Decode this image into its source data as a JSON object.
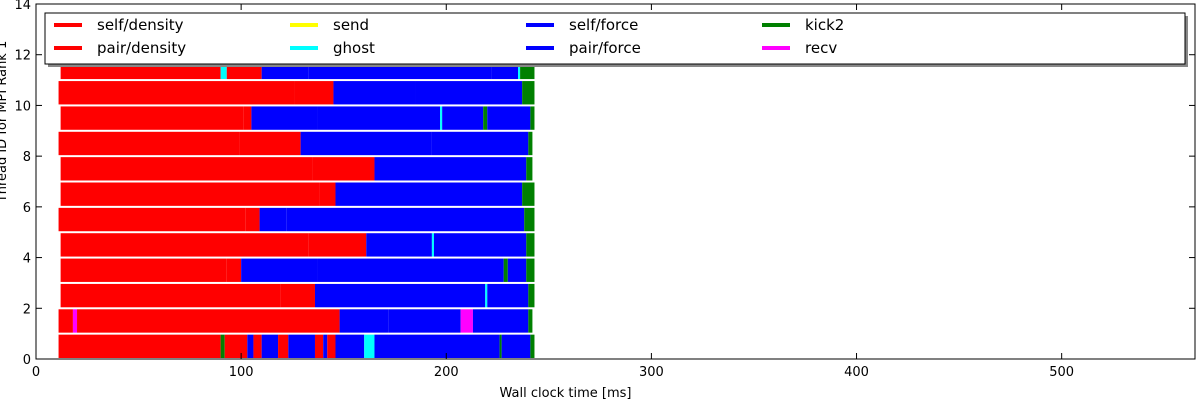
{
  "chart_data": {
    "type": "bar",
    "orientation": "horizontal-timeline",
    "xlabel": "Wall clock time [ms]",
    "ylabel": "Thread ID for MPI Rank 1",
    "xlim": [
      0,
      565
    ],
    "ylim": [
      0,
      14
    ],
    "xticks": [
      0,
      100,
      200,
      300,
      400,
      500
    ],
    "xtick_labels": [
      "0",
      "100",
      "200",
      "300",
      "400",
      "500"
    ],
    "yticks": [
      0,
      2,
      4,
      6,
      8,
      10,
      12,
      14
    ],
    "ytick_labels": [
      "0",
      "2",
      "4",
      "6",
      "8",
      "10",
      "12",
      "14"
    ],
    "grid": false,
    "legend": {
      "placement": "top, inside axes, 5 columns",
      "entries": [
        {
          "label": "self/density",
          "color": "#ff0000"
        },
        {
          "label": "pair/density",
          "color": "#ff0000"
        },
        {
          "label": "send",
          "color": "#ffff00"
        },
        {
          "label": "ghost",
          "color": "#00ffff"
        },
        {
          "label": "self/force",
          "color": "#0000ff"
        },
        {
          "label": "pair/force",
          "color": "#0000ff"
        },
        {
          "label": "kick2",
          "color": "#008000"
        },
        {
          "label": "recv",
          "color": "#ff00ff"
        }
      ]
    },
    "threads": [
      {
        "id": 0,
        "segments": [
          {
            "start": 11,
            "end": 90,
            "task": "self/density"
          },
          {
            "start": 90,
            "end": 92,
            "task": "kick2"
          },
          {
            "start": 92,
            "end": 103,
            "task": "pair/density"
          },
          {
            "start": 103,
            "end": 106,
            "task": "pair/force"
          },
          {
            "start": 106,
            "end": 110,
            "task": "pair/density"
          },
          {
            "start": 110,
            "end": 118,
            "task": "pair/force"
          },
          {
            "start": 118,
            "end": 123,
            "task": "pair/density"
          },
          {
            "start": 123,
            "end": 136,
            "task": "pair/force"
          },
          {
            "start": 136,
            "end": 140,
            "task": "pair/density"
          },
          {
            "start": 140,
            "end": 142,
            "task": "pair/force"
          },
          {
            "start": 142,
            "end": 146,
            "task": "pair/density"
          },
          {
            "start": 146,
            "end": 160,
            "task": "pair/force"
          },
          {
            "start": 160,
            "end": 165,
            "task": "ghost"
          },
          {
            "start": 165,
            "end": 226,
            "task": "pair/force"
          },
          {
            "start": 226,
            "end": 227,
            "task": "kick2"
          },
          {
            "start": 227,
            "end": 241,
            "task": "pair/force"
          },
          {
            "start": 241,
            "end": 243,
            "task": "kick2"
          }
        ]
      },
      {
        "id": 1,
        "segments": [
          {
            "start": 11,
            "end": 18,
            "task": "self/density"
          },
          {
            "start": 18,
            "end": 20,
            "task": "recv"
          },
          {
            "start": 20,
            "end": 148,
            "task": "pair/density"
          },
          {
            "start": 148,
            "end": 172,
            "task": "pair/force"
          },
          {
            "start": 172,
            "end": 207,
            "task": "self/force"
          },
          {
            "start": 207,
            "end": 213,
            "task": "recv"
          },
          {
            "start": 213,
            "end": 240,
            "task": "pair/force"
          },
          {
            "start": 240,
            "end": 242,
            "task": "kick2"
          }
        ]
      },
      {
        "id": 2,
        "segments": [
          {
            "start": 12,
            "end": 119,
            "task": "self/density"
          },
          {
            "start": 119,
            "end": 136,
            "task": "pair/density"
          },
          {
            "start": 136,
            "end": 219,
            "task": "pair/force"
          },
          {
            "start": 219,
            "end": 220,
            "task": "ghost"
          },
          {
            "start": 220,
            "end": 240,
            "task": "pair/force"
          },
          {
            "start": 240,
            "end": 243,
            "task": "kick2"
          }
        ]
      },
      {
        "id": 3,
        "segments": [
          {
            "start": 12,
            "end": 93,
            "task": "self/density"
          },
          {
            "start": 93,
            "end": 100,
            "task": "pair/density"
          },
          {
            "start": 100,
            "end": 137,
            "task": "self/force"
          },
          {
            "start": 137,
            "end": 228,
            "task": "pair/force"
          },
          {
            "start": 228,
            "end": 230,
            "task": "kick2"
          },
          {
            "start": 230,
            "end": 239,
            "task": "pair/force"
          },
          {
            "start": 239,
            "end": 243,
            "task": "kick2"
          }
        ]
      },
      {
        "id": 4,
        "segments": [
          {
            "start": 12,
            "end": 133,
            "task": "self/density"
          },
          {
            "start": 133,
            "end": 161,
            "task": "pair/density"
          },
          {
            "start": 161,
            "end": 193,
            "task": "pair/force"
          },
          {
            "start": 193,
            "end": 194,
            "task": "ghost"
          },
          {
            "start": 194,
            "end": 239,
            "task": "pair/force"
          },
          {
            "start": 239,
            "end": 243,
            "task": "kick2"
          }
        ]
      },
      {
        "id": 5,
        "segments": [
          {
            "start": 11,
            "end": 102,
            "task": "self/density"
          },
          {
            "start": 102,
            "end": 109,
            "task": "pair/density"
          },
          {
            "start": 109,
            "end": 122,
            "task": "pair/force"
          },
          {
            "start": 122,
            "end": 238,
            "task": "self/force"
          },
          {
            "start": 238,
            "end": 243,
            "task": "kick2"
          }
        ]
      },
      {
        "id": 6,
        "segments": [
          {
            "start": 12,
            "end": 138,
            "task": "self/density"
          },
          {
            "start": 138,
            "end": 146,
            "task": "pair/density"
          },
          {
            "start": 146,
            "end": 237,
            "task": "pair/force"
          },
          {
            "start": 237,
            "end": 243,
            "task": "kick2"
          }
        ]
      },
      {
        "id": 7,
        "segments": [
          {
            "start": 12,
            "end": 135,
            "task": "self/density"
          },
          {
            "start": 135,
            "end": 165,
            "task": "pair/density"
          },
          {
            "start": 165,
            "end": 239,
            "task": "pair/force"
          },
          {
            "start": 239,
            "end": 242,
            "task": "kick2"
          }
        ]
      },
      {
        "id": 8,
        "segments": [
          {
            "start": 11,
            "end": 99,
            "task": "self/density"
          },
          {
            "start": 99,
            "end": 129,
            "task": "pair/density"
          },
          {
            "start": 129,
            "end": 193,
            "task": "self/force"
          },
          {
            "start": 193,
            "end": 240,
            "task": "pair/force"
          },
          {
            "start": 240,
            "end": 242,
            "task": "kick2"
          }
        ]
      },
      {
        "id": 9,
        "segments": [
          {
            "start": 12,
            "end": 101,
            "task": "self/density"
          },
          {
            "start": 101,
            "end": 105,
            "task": "pair/density"
          },
          {
            "start": 105,
            "end": 137,
            "task": "pair/force"
          },
          {
            "start": 137,
            "end": 197,
            "task": "self/force"
          },
          {
            "start": 197,
            "end": 198,
            "task": "ghost"
          },
          {
            "start": 198,
            "end": 218,
            "task": "pair/force"
          },
          {
            "start": 218,
            "end": 220,
            "task": "kick2"
          },
          {
            "start": 220,
            "end": 241,
            "task": "pair/force"
          },
          {
            "start": 241,
            "end": 243,
            "task": "kick2"
          }
        ]
      },
      {
        "id": 10,
        "segments": [
          {
            "start": 11,
            "end": 126,
            "task": "self/density"
          },
          {
            "start": 126,
            "end": 145,
            "task": "pair/density"
          },
          {
            "start": 145,
            "end": 185,
            "task": "pair/force"
          },
          {
            "start": 185,
            "end": 237,
            "task": "self/force"
          },
          {
            "start": 237,
            "end": 243,
            "task": "kick2"
          }
        ]
      },
      {
        "id": 11,
        "segments": [
          {
            "start": 12,
            "end": 90,
            "task": "self/density"
          },
          {
            "start": 90,
            "end": 93,
            "task": "ghost"
          },
          {
            "start": 93,
            "end": 110,
            "task": "pair/density"
          },
          {
            "start": 110,
            "end": 133,
            "task": "pair/force"
          },
          {
            "start": 133,
            "end": 222,
            "task": "self/force"
          },
          {
            "start": 222,
            "end": 235,
            "task": "pair/force"
          },
          {
            "start": 235,
            "end": 236,
            "task": "ghost"
          },
          {
            "start": 236,
            "end": 243,
            "task": "kick2"
          }
        ]
      }
    ]
  }
}
